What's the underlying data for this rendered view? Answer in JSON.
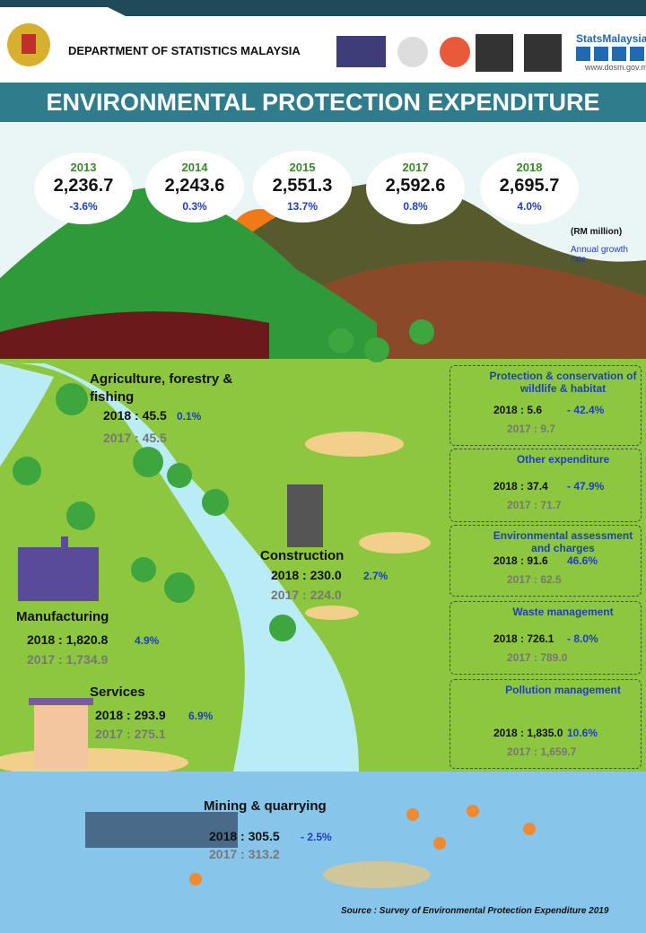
{
  "header": {
    "org": "DEPARTMENT OF STATISTICS MALAYSIA",
    "brand": "StatsMalaysia",
    "url": "www.dosm.gov.my"
  },
  "title": "ENVIRONMENTAL PROTECTION EXPENDITURE",
  "yearly": [
    {
      "year": "2013",
      "value": "2,236.7",
      "growth": "-3.6%"
    },
    {
      "year": "2014",
      "value": "2,243.6",
      "growth": "0.3%"
    },
    {
      "year": "2015",
      "value": "2,551.3",
      "growth": "13.7%"
    },
    {
      "year": "2017",
      "value": "2,592.6",
      "growth": "0.8%"
    },
    {
      "year": "2018",
      "value": "2,695.7",
      "growth": "4.0%"
    }
  ],
  "unit": "(RM million)",
  "growth_note": "Annual growth rate",
  "sectors": [
    {
      "name": "Agriculture, forestry & fishing",
      "y2018": "2018 : 45.5",
      "growth": "0.1%",
      "y2017": "2017 : 45.5"
    },
    {
      "name": "Construction",
      "y2018": "2018 : 230.0",
      "growth": "2.7%",
      "y2017": "2017 : 224.0"
    },
    {
      "name": "Manufacturing",
      "y2018": "2018 : 1,820.8",
      "growth": "4.9%",
      "y2017": "2017 : 1,734.9"
    },
    {
      "name": "Services",
      "y2018": "2018 : 293.9",
      "growth": "6.9%",
      "y2017": "2017 : 275.1"
    },
    {
      "name": "Mining & quarrying",
      "y2018": "2018 : 305.5",
      "growth": "- 2.5%",
      "y2017": "2017 : 313.2"
    }
  ],
  "activities": [
    {
      "name": "Protection & conservation of wildlife & habitat",
      "y2018": "2018 : 5.6",
      "growth": "- 42.4%",
      "y2017": "2017 : 9.7"
    },
    {
      "name": "Other expenditure",
      "y2018": "2018 : 37.4",
      "growth": "- 47.9%",
      "y2017": "2017 : 71.7"
    },
    {
      "name": "Environmental assessment and charges",
      "y2018": "2018 : 91.6",
      "growth": "46.6%",
      "y2017": "2017 : 62.5"
    },
    {
      "name": "Waste management",
      "y2018": "2018 : 726.1",
      "growth": "- 8.0%",
      "y2017": "2017 : 789.0"
    },
    {
      "name": "Pollution management",
      "y2018": "2018 : 1,835.0",
      "growth": "10.6%",
      "y2017": "2017 : 1,659.7"
    }
  ],
  "source": "Source : Survey of Environmental Protection  Expenditure 2019"
}
